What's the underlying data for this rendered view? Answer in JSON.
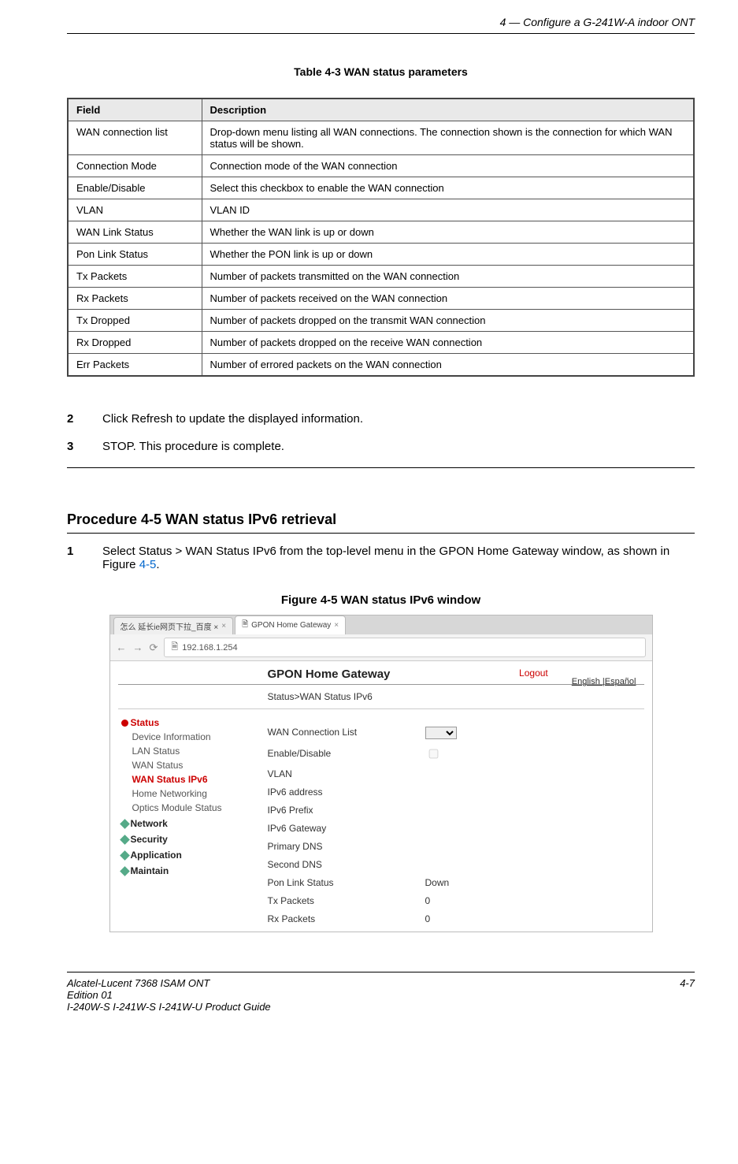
{
  "header": {
    "section": "4 —  Configure a G-241W-A indoor ONT"
  },
  "table": {
    "caption": "Table 4-3 WAN status parameters",
    "columns": [
      "Field",
      "Description"
    ],
    "rows": [
      [
        "WAN connection list",
        "Drop-down menu listing all WAN connections. The connection shown is the connection for which WAN status will be shown."
      ],
      [
        "Connection Mode",
        "Connection mode of the WAN connection"
      ],
      [
        "Enable/Disable",
        "Select this checkbox to enable the WAN connection"
      ],
      [
        "VLAN",
        "VLAN ID"
      ],
      [
        "WAN Link Status",
        "Whether the WAN link is up or down"
      ],
      [
        "Pon Link Status",
        "Whether the PON link is up or down"
      ],
      [
        "Tx Packets",
        "Number of packets transmitted on the WAN connection"
      ],
      [
        "Rx Packets",
        "Number of packets received on the WAN connection"
      ],
      [
        "Tx Dropped",
        "Number of packets dropped on the transmit WAN connection"
      ],
      [
        "Rx Dropped",
        "Number of packets dropped on the receive WAN connection"
      ],
      [
        "Err Packets",
        "Number of errored packets on the WAN connection"
      ]
    ]
  },
  "steps_top": [
    {
      "num": "2",
      "text": "Click Refresh to update the displayed information."
    },
    {
      "num": "3",
      "text": "STOP. This procedure is complete."
    }
  ],
  "procedure": {
    "title": "Procedure 4-5  WAN status IPv6 retrieval",
    "step_num": "1",
    "step_text_a": "Select Status > WAN Status IPv6 from the top-level menu in the GPON Home Gateway window, as shown in Figure ",
    "figref": "4-5",
    "step_text_b": "."
  },
  "figure": {
    "caption": "Figure 4-5  WAN status IPv6 window",
    "browser": {
      "tab1": "怎么 延长ie网页下拉_百度 ×",
      "tab2": "GPON Home Gateway",
      "url": "192.168.1.254"
    },
    "gpon": {
      "title": "GPON Home Gateway",
      "logout": "Logout",
      "lang": "English |Español",
      "breadcrumb": "Status>WAN Status IPv6"
    },
    "sidebar": {
      "status": "Status",
      "subs": [
        "Device Information",
        "LAN Status",
        "WAN Status",
        "WAN Status IPv6",
        "Home Networking",
        "Optics Module Status"
      ],
      "active_index": 3,
      "cats": [
        "Network",
        "Security",
        "Application",
        "Maintain"
      ]
    },
    "form_rows": [
      {
        "label": "WAN Connection List",
        "ctrl": "select",
        "value": ""
      },
      {
        "label": "Enable/Disable",
        "ctrl": "checkbox",
        "value": ""
      },
      {
        "label": "VLAN",
        "ctrl": "text",
        "value": ""
      },
      {
        "label": "IPv6 address",
        "ctrl": "text",
        "value": ""
      },
      {
        "label": "IPv6 Prefix",
        "ctrl": "text",
        "value": ""
      },
      {
        "label": "IPv6 Gateway",
        "ctrl": "text",
        "value": ""
      },
      {
        "label": "Primary DNS",
        "ctrl": "text",
        "value": ""
      },
      {
        "label": "Second DNS",
        "ctrl": "text",
        "value": ""
      },
      {
        "label": "Pon Link Status",
        "ctrl": "text",
        "value": "Down"
      },
      {
        "label": "Tx Packets",
        "ctrl": "text",
        "value": "0"
      },
      {
        "label": "Rx Packets",
        "ctrl": "text",
        "value": "0"
      }
    ]
  },
  "footer": {
    "left1": "Alcatel-Lucent 7368 ISAM ONT",
    "left2": "Edition 01",
    "left3": "I-240W-S I-241W-S I-241W-U Product Guide",
    "right": "4-7"
  }
}
